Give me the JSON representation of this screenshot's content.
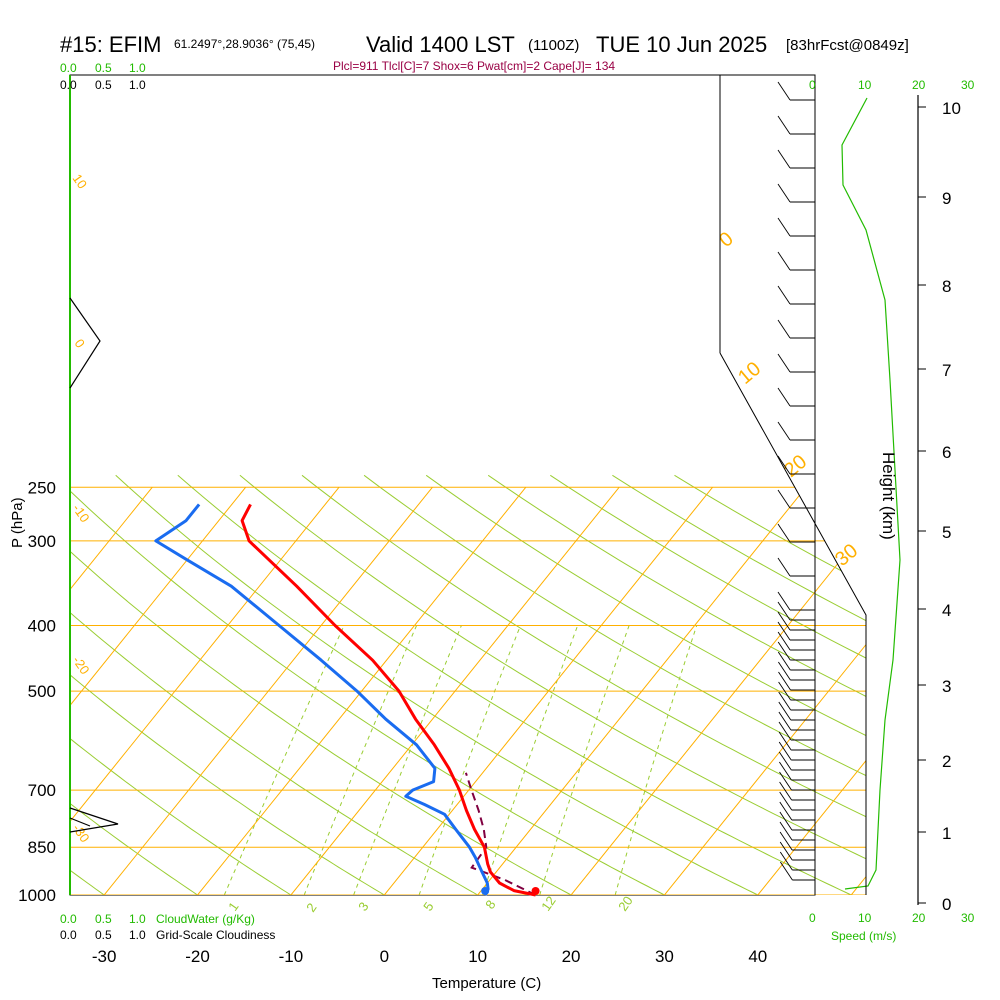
{
  "header": {
    "station": "#15: EFIM",
    "coords": "61.2497°,28.9036° (75,45)",
    "valid": "Valid 1400 LST",
    "utc": "(1100Z)",
    "date": "TUE 10 Jun 2025",
    "forecast": "[83hrFcst@0849z]",
    "indices": "Plcl=911 Tlcl[C]=7 Shox=6 Pwat[cm]=2 Cape[J]= 134"
  },
  "colors": {
    "temperature": "#ff0000",
    "dewpoint": "#1a6cf0",
    "parcel": "#800040",
    "isotherm": "#ffb000",
    "dry_adiabat": "#9acd32",
    "mixing_ratio": "#9acd32",
    "cloud_green": "#22bb00",
    "indices_text": "#990044"
  },
  "chart_data": {
    "type": "skew-t",
    "xlabel": "Temperature (C)",
    "ylabel": "P (hPa)",
    "ylabel_right": "Height (km)",
    "xlim": [
      -30,
      40
    ],
    "x_ticks": [
      "-30",
      "-20",
      "-10",
      "0",
      "10",
      "20",
      "30",
      "40"
    ],
    "pressure_levels": [
      "250",
      "300",
      "400",
      "500",
      "700",
      "850",
      "1000"
    ],
    "height_ticks": [
      "0",
      "1",
      "2",
      "3",
      "4",
      "5",
      "6",
      "7",
      "8",
      "9",
      "10"
    ],
    "isotherm_labels": [
      "10",
      "0",
      "-10",
      "-20",
      "-30",
      "0",
      "10",
      "20",
      "30"
    ],
    "mixing_ratio_labels": [
      "1",
      "2",
      "3",
      "5",
      "8",
      "12",
      "20"
    ],
    "cloud_scale_top_green": [
      "0.0",
      "0.5",
      "1.0"
    ],
    "cloud_scale_top_black": [
      "0.0",
      "0.5",
      "1.0"
    ],
    "cloud_scale_bottom_green": [
      "0.0",
      "0.5",
      "1.0"
    ],
    "cloud_scale_bottom_black": [
      "0.0",
      "0.5",
      "1.0"
    ],
    "cloudwater_label": "CloudWater (g/Kg)",
    "cloudiness_label": "Grid-Scale Cloudiness",
    "speed_ticks": [
      "0",
      "10",
      "20",
      "30"
    ],
    "speed_label": "Speed (m/s)",
    "temperature": [
      {
        "p": 1000,
        "t": 16.2
      },
      {
        "p": 985,
        "t": 13.5
      },
      {
        "p": 960,
        "t": 11.3
      },
      {
        "p": 925,
        "t": 9.4
      },
      {
        "p": 900,
        "t": 8.4
      },
      {
        "p": 850,
        "t": 6.6
      },
      {
        "p": 800,
        "t": 4.0
      },
      {
        "p": 750,
        "t": 1.5
      },
      {
        "p": 700,
        "t": -1.0
      },
      {
        "p": 650,
        "t": -4.0
      },
      {
        "p": 600,
        "t": -7.6
      },
      {
        "p": 550,
        "t": -11.8
      },
      {
        "p": 500,
        "t": -16.0
      },
      {
        "p": 450,
        "t": -21.5
      },
      {
        "p": 400,
        "t": -28.5
      },
      {
        "p": 350,
        "t": -36.0
      },
      {
        "p": 300,
        "t": -45.0
      },
      {
        "p": 280,
        "t": -47.5
      },
      {
        "p": 265,
        "t": -48.0
      }
    ],
    "dewpoint": [
      {
        "p": 1000,
        "t": 10.8
      },
      {
        "p": 980,
        "t": 10.6
      },
      {
        "p": 960,
        "t": 10.0
      },
      {
        "p": 925,
        "t": 8.5
      },
      {
        "p": 880,
        "t": 6.5
      },
      {
        "p": 850,
        "t": 5.0
      },
      {
        "p": 800,
        "t": 2.0
      },
      {
        "p": 760,
        "t": -0.5
      },
      {
        "p": 735,
        "t": -3.5
      },
      {
        "p": 715,
        "t": -6.2
      },
      {
        "p": 700,
        "t": -6.0
      },
      {
        "p": 680,
        "t": -4.5
      },
      {
        "p": 650,
        "t": -5.5
      },
      {
        "p": 600,
        "t": -9.5
      },
      {
        "p": 550,
        "t": -15.0
      },
      {
        "p": 500,
        "t": -20.5
      },
      {
        "p": 450,
        "t": -27.0
      },
      {
        "p": 400,
        "t": -34.5
      },
      {
        "p": 350,
        "t": -43.0
      },
      {
        "p": 320,
        "t": -50.0
      },
      {
        "p": 300,
        "t": -55.0
      },
      {
        "p": 280,
        "t": -53.5
      },
      {
        "p": 265,
        "t": -53.5
      }
    ],
    "parcel": [
      {
        "p": 1000,
        "t": 16.2
      },
      {
        "p": 950,
        "t": 11.6
      },
      {
        "p": 911,
        "t": 7.0
      },
      {
        "p": 850,
        "t": 6.8
      },
      {
        "p": 800,
        "t": 5.0
      },
      {
        "p": 750,
        "t": 2.8
      },
      {
        "p": 700,
        "t": 0.3
      },
      {
        "p": 660,
        "t": -1.8
      }
    ],
    "surface_temperature": 16.2,
    "surface_dewpoint": 10.8
  }
}
